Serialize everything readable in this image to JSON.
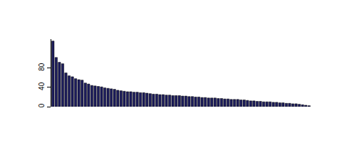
{
  "chart_data": {
    "type": "bar",
    "categories": [
      null,
      null,
      null,
      null,
      null,
      null,
      null,
      null,
      null,
      null,
      null,
      null,
      null,
      null,
      null,
      null,
      null,
      null,
      null,
      null,
      null,
      null,
      null,
      null,
      null,
      null,
      null,
      null,
      null,
      null,
      null,
      null,
      null,
      null,
      null,
      null,
      null,
      null,
      null,
      null,
      null,
      null,
      null,
      null,
      null,
      null,
      null,
      null,
      null,
      null,
      null,
      null,
      null,
      null,
      null,
      null,
      null,
      null,
      null,
      null,
      null,
      null,
      null,
      null,
      null,
      null,
      null,
      null,
      null,
      null,
      null,
      null,
      null,
      null,
      null,
      null,
      null,
      null,
      null,
      null
    ],
    "values": [
      136,
      102,
      92,
      89,
      70,
      64,
      62,
      58,
      56,
      55,
      49,
      47,
      44,
      43,
      42,
      41,
      39,
      38,
      37,
      36,
      34,
      33,
      32,
      31,
      31,
      30,
      30,
      29,
      29,
      28,
      27,
      26,
      26,
      25,
      25,
      24,
      24,
      23,
      23,
      23,
      22,
      22,
      21,
      21,
      20,
      20,
      19,
      19,
      18,
      18,
      18,
      17,
      17,
      16,
      16,
      15,
      15,
      15,
      14,
      14,
      13,
      12,
      12,
      11,
      11,
      10,
      10,
      10,
      9,
      9,
      8,
      8,
      7,
      7,
      6,
      6,
      5,
      4,
      3,
      2
    ],
    "color": "#1c1c5c",
    "ylim": [
      0,
      140
    ],
    "yticks": [
      0,
      40,
      80
    ],
    "grid": false,
    "tick_labels": "y"
  }
}
